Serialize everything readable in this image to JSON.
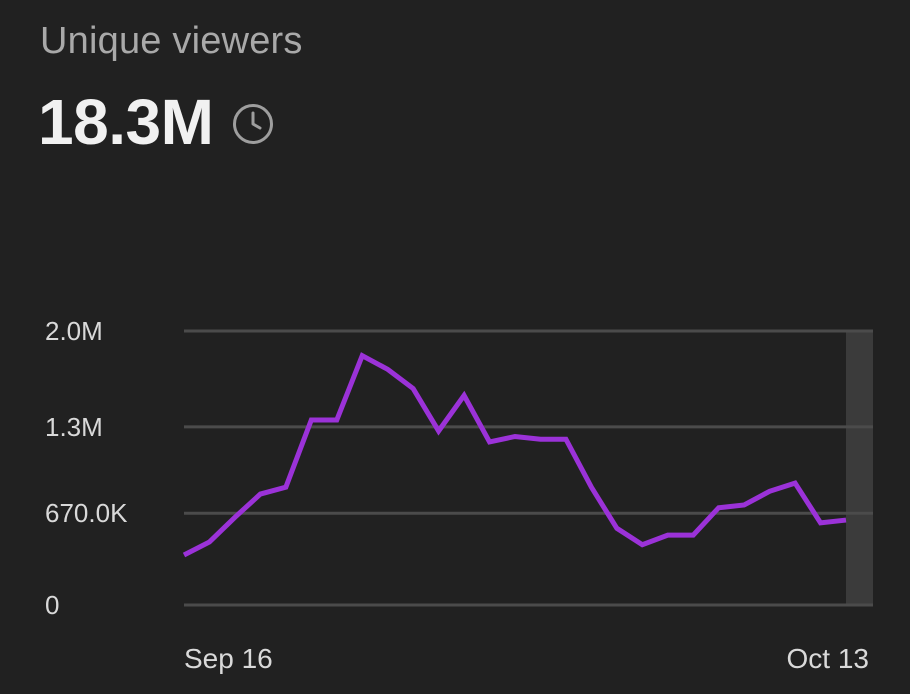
{
  "header": {
    "title": "Unique viewers",
    "value": "18.3M",
    "icon": "clock-icon"
  },
  "chart_data": {
    "type": "line",
    "title": "Unique viewers",
    "series": [
      {
        "name": "Unique viewers",
        "color": "#9b32d8",
        "values": [
          365000,
          460000,
          640000,
          810000,
          860000,
          1350000,
          1350000,
          1820000,
          1720000,
          1580000,
          1270000,
          1530000,
          1190000,
          1230000,
          1210000,
          1210000,
          860000,
          560000,
          440000,
          510000,
          510000,
          710000,
          730000,
          830000,
          890000,
          600000,
          620000
        ]
      }
    ],
    "x_start_label": "Sep 16",
    "x_end_label": "Oct 13",
    "xlabels": [
      "Sep 16",
      "Oct 13"
    ],
    "yticks": [
      0,
      670000,
      1300000,
      2000000
    ],
    "yticklabels": [
      "0",
      "670.0K",
      "1.3M",
      "2.0M"
    ],
    "ylim": [
      0,
      2000000
    ],
    "grid": true,
    "highlight_last_column": true,
    "colors": {
      "line": "#9b32d8",
      "grid": "#4b4b4b",
      "highlight": "#3b3b3b",
      "axis_text": "#d9d9d9"
    }
  }
}
